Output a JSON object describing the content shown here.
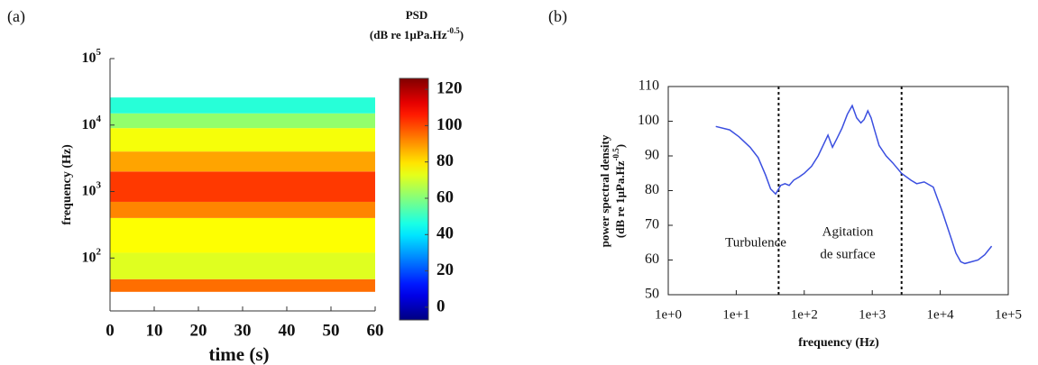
{
  "panels": [
    "(a)",
    "(b)"
  ],
  "chart_data": [
    {
      "type": "heatmap",
      "xlabel": "time (s)",
      "ylabel": "frequency (Hz)",
      "xlim": [
        0,
        60
      ],
      "xticks": [
        0,
        10,
        20,
        30,
        40,
        50,
        60
      ],
      "yscale": "log",
      "ylim": [
        16,
        100000
      ],
      "yticks": [
        {
          "value": 100,
          "label": "10",
          "exponent": "2"
        },
        {
          "value": 1000,
          "label": "10",
          "exponent": "3"
        },
        {
          "value": 10000,
          "label": "10",
          "exponent": "4"
        },
        {
          "value": 100000,
          "label": "10",
          "exponent": "5"
        }
      ],
      "freq_edges": [
        31,
        48,
        120,
        400,
        700,
        2000,
        4000,
        9000,
        15000,
        26000
      ],
      "psd": [
        95,
        72,
        76,
        92,
        102,
        88,
        75,
        62,
        48
      ],
      "colormap": "jet",
      "colorbar_title": "PSD",
      "colorbar_unit": {
        "text": "(dB re 1µPa.Hz",
        "sup": "-0.5",
        "end": ")"
      },
      "clim": [
        -7,
        126
      ],
      "cticks": [
        0,
        20,
        40,
        60,
        80,
        100,
        120
      ]
    },
    {
      "type": "line",
      "xlabel": "frequency (Hz)",
      "ylabel": "power spectral density",
      "ylabel_unit": {
        "text": "(dB re 1µPa.Hz",
        "sup": "-0.5",
        "end": ")"
      },
      "xscale": "log",
      "xlim": [
        1,
        100000
      ],
      "xticks": [
        {
          "value": 1,
          "label": "1e+0"
        },
        {
          "value": 10,
          "label": "1e+1"
        },
        {
          "value": 100,
          "label": "1e+2"
        },
        {
          "value": 1000,
          "label": "1e+3"
        },
        {
          "value": 10000,
          "label": "1e+4"
        },
        {
          "value": 100000,
          "label": "1e+5"
        }
      ],
      "ylim": [
        50,
        110
      ],
      "yticks": [
        50,
        60,
        70,
        80,
        90,
        100,
        110
      ],
      "color": "#3b4fe0",
      "x": [
        5,
        8,
        11,
        16,
        21,
        27,
        32,
        38,
        45,
        52,
        60,
        70,
        85,
        100,
        128,
        160,
        200,
        223,
        260,
        302,
        360,
        430,
        508,
        590,
        680,
        760,
        860,
        960,
        1100,
        1260,
        1600,
        2000,
        2700,
        3700,
        4500,
        5800,
        7900,
        9000,
        10700,
        12500,
        14600,
        17000,
        20000,
        23000,
        29000,
        36000,
        45000,
        57000
      ],
      "values": [
        98.5,
        97.5,
        95.5,
        92.5,
        89.5,
        84.5,
        80.5,
        79,
        81.5,
        82,
        81.5,
        83,
        84,
        85,
        87,
        90,
        94,
        96,
        92.5,
        95,
        98,
        102,
        104.5,
        101,
        99.5,
        100.5,
        103,
        101,
        97,
        93,
        90,
        88,
        85,
        83,
        82,
        82.5,
        81,
        78,
        74,
        70,
        66,
        62,
        59.5,
        59,
        59.5,
        60,
        61.5,
        64
      ],
      "vlines": [
        42,
        2700
      ],
      "annotations": [
        "Turbulence",
        "Agitation",
        "de surface"
      ]
    }
  ]
}
